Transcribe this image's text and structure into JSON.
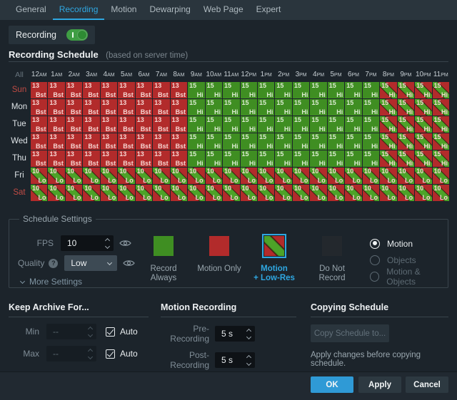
{
  "tabs": [
    {
      "label": "General",
      "active": false
    },
    {
      "label": "Recording",
      "active": true
    },
    {
      "label": "Motion",
      "active": false
    },
    {
      "label": "Dewarping",
      "active": false
    },
    {
      "label": "Web Page",
      "active": false
    },
    {
      "label": "Expert",
      "active": false
    }
  ],
  "recording_toggle": {
    "label": "Recording",
    "state": "on"
  },
  "schedule": {
    "title": "Recording Schedule",
    "subtitle": "(based on server time)",
    "all_label": "All",
    "hours": [
      "12AM",
      "1AM",
      "2AM",
      "3AM",
      "4AM",
      "5AM",
      "6AM",
      "7AM",
      "8AM",
      "9AM",
      "10AM",
      "11AM",
      "12PM",
      "1PM",
      "2PM",
      "3PM",
      "4PM",
      "5PM",
      "6PM",
      "7PM",
      "8PM",
      "9PM",
      "10PM",
      "11PM"
    ],
    "cell_types": {
      "motion": {
        "fps": "13",
        "quality": "Bst",
        "style": "red",
        "mode": "Motion Only"
      },
      "always": {
        "fps": "15",
        "quality": "Hi",
        "style": "green",
        "mode": "Record Always"
      },
      "motion_lowres_hi": {
        "fps": "15",
        "quality": "Hi",
        "style": "striped",
        "mode": "Motion + Low-Res"
      },
      "motion_lowres_lo": {
        "fps": "10",
        "quality": "Lo",
        "style": "striped",
        "mode": "Motion + Low-Res"
      }
    },
    "rows": [
      {
        "day": "Sun",
        "weekend": true,
        "segments": [
          {
            "type": "motion",
            "count": 9
          },
          {
            "type": "always",
            "count": 11
          },
          {
            "type": "motion_lowres_hi",
            "count": 4
          }
        ]
      },
      {
        "day": "Mon",
        "weekend": false,
        "segments": [
          {
            "type": "motion",
            "count": 9
          },
          {
            "type": "always",
            "count": 11
          },
          {
            "type": "motion_lowres_hi",
            "count": 4
          }
        ]
      },
      {
        "day": "Tue",
        "weekend": false,
        "segments": [
          {
            "type": "motion",
            "count": 9
          },
          {
            "type": "always",
            "count": 11
          },
          {
            "type": "motion_lowres_hi",
            "count": 4
          }
        ]
      },
      {
        "day": "Wed",
        "weekend": false,
        "segments": [
          {
            "type": "motion",
            "count": 9
          },
          {
            "type": "always",
            "count": 11
          },
          {
            "type": "motion_lowres_hi",
            "count": 4
          }
        ]
      },
      {
        "day": "Thu",
        "weekend": false,
        "segments": [
          {
            "type": "motion",
            "count": 9
          },
          {
            "type": "always",
            "count": 11
          },
          {
            "type": "motion_lowres_hi",
            "count": 4
          }
        ]
      },
      {
        "day": "Fri",
        "weekend": false,
        "segments": [
          {
            "type": "motion_lowres_lo",
            "count": 24
          }
        ]
      },
      {
        "day": "Sat",
        "weekend": true,
        "segments": [
          {
            "type": "motion_lowres_lo",
            "count": 24
          }
        ]
      }
    ]
  },
  "schedule_settings": {
    "legend": "Schedule Settings",
    "fps": {
      "label": "FPS",
      "value": "10"
    },
    "quality": {
      "label": "Quality",
      "value": "Low",
      "help_icon": "?"
    },
    "more_settings": "More Settings",
    "brushes": [
      {
        "label_lines": [
          "Record Always"
        ],
        "style": "green",
        "selected": false
      },
      {
        "label_lines": [
          "Motion Only"
        ],
        "style": "red",
        "selected": false
      },
      {
        "label_lines": [
          "Motion",
          "+ Low-Res"
        ],
        "style": "striped",
        "selected": true
      },
      {
        "label_lines": [
          "Do Not Record"
        ],
        "style": "dark",
        "selected": false
      }
    ],
    "record_type_radios": [
      {
        "label": "Motion",
        "selected": true,
        "enabled": true
      },
      {
        "label": "Objects",
        "selected": false,
        "enabled": false
      },
      {
        "label": "Motion & Objects",
        "selected": false,
        "enabled": false
      }
    ]
  },
  "keep_archive": {
    "title": "Keep Archive For...",
    "rows": [
      {
        "label": "Min",
        "value": "--",
        "auto_label": "Auto",
        "auto_checked": true
      },
      {
        "label": "Max",
        "value": "--",
        "auto_label": "Auto",
        "auto_checked": true
      }
    ]
  },
  "motion_recording": {
    "title": "Motion Recording",
    "rows": [
      {
        "label": "Pre-Recording",
        "value": "5 s"
      },
      {
        "label": "Post-Recording",
        "value": "5 s"
      }
    ]
  },
  "copying_schedule": {
    "title": "Copying Schedule",
    "button": "Copy Schedule to...",
    "note": "Apply changes before copying schedule."
  },
  "footer": {
    "ok": "OK",
    "apply": "Apply",
    "cancel": "Cancel"
  },
  "colors": {
    "accent": "#2fa7e1",
    "record_always": "#3f8e22",
    "motion_only": "#b22b2b",
    "stripe_green": "#4da328",
    "do_not_record": "#23282d",
    "weekend_label": "#bf4b44",
    "ok_button": "#2f9ad6"
  }
}
